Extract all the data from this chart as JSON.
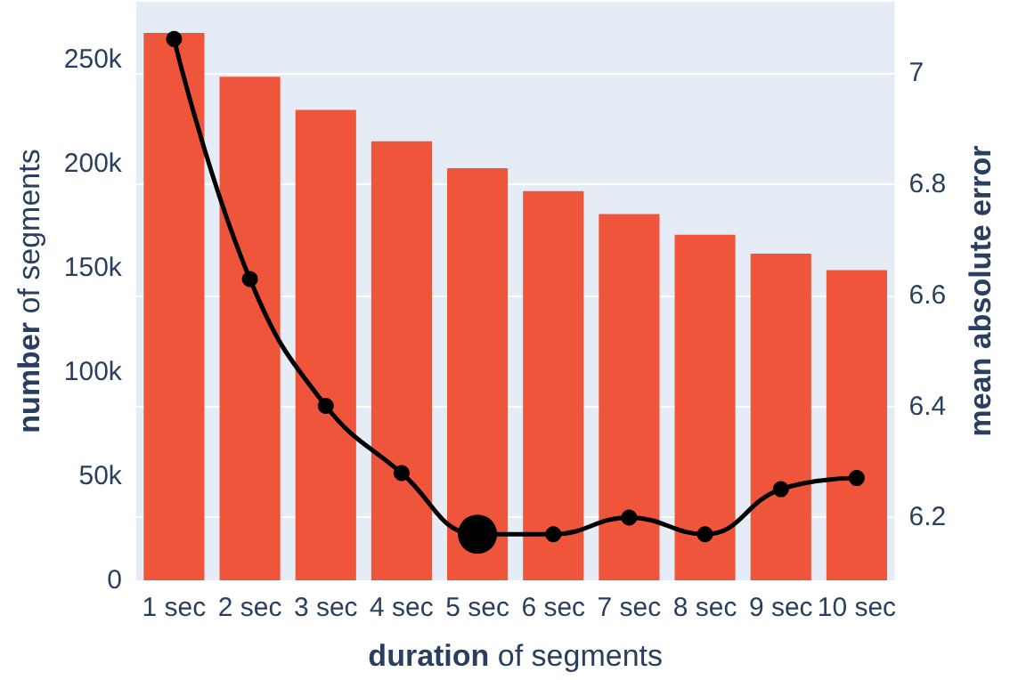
{
  "chart_data": {
    "type": "bar",
    "xlabel": "duration of segments",
    "ylabel": "number of segments",
    "y2label": "mean absolute error",
    "categories": [
      "1 sec",
      "2 sec",
      "3 sec",
      "4 sec",
      "5 sec",
      "6 sec",
      "7 sec",
      "8 sec",
      "9 sec",
      "10 sec"
    ],
    "series": [
      {
        "color": "#ef553b",
        "values": [
          263000,
          242000,
          226000,
          211000,
          198000,
          187000,
          176000,
          166000,
          157000,
          149000
        ]
      },
      {
        "type": "line",
        "axis": "y2",
        "color": "#000000",
        "marker": "circle",
        "values": [
          7.061,
          6.629,
          6.401,
          6.28,
          6.17,
          6.17,
          6.2,
          6.17,
          6.251,
          6.271
        ]
      },
      {
        "type": "scatter",
        "axis": "y2",
        "color": "#000000",
        "marker": "circle",
        "x": [
          "5 sec"
        ],
        "values": [
          6.17
        ]
      }
    ],
    "ylim": [
      0,
      278000
    ],
    "yticks": [
      0,
      {
        "value": 50000,
        "label": "50k"
      },
      {
        "value": 100000,
        "label": "100k"
      },
      {
        "value": 150000,
        "label": "150k"
      },
      {
        "value": 200000,
        "label": "200k"
      },
      {
        "value": 250000,
        "label": "250k"
      }
    ],
    "y2lim": [
      6.087,
      7.128
    ],
    "y2ticks": [
      6.2,
      6.4,
      6.6,
      6.8,
      7
    ],
    "grid": true
  }
}
